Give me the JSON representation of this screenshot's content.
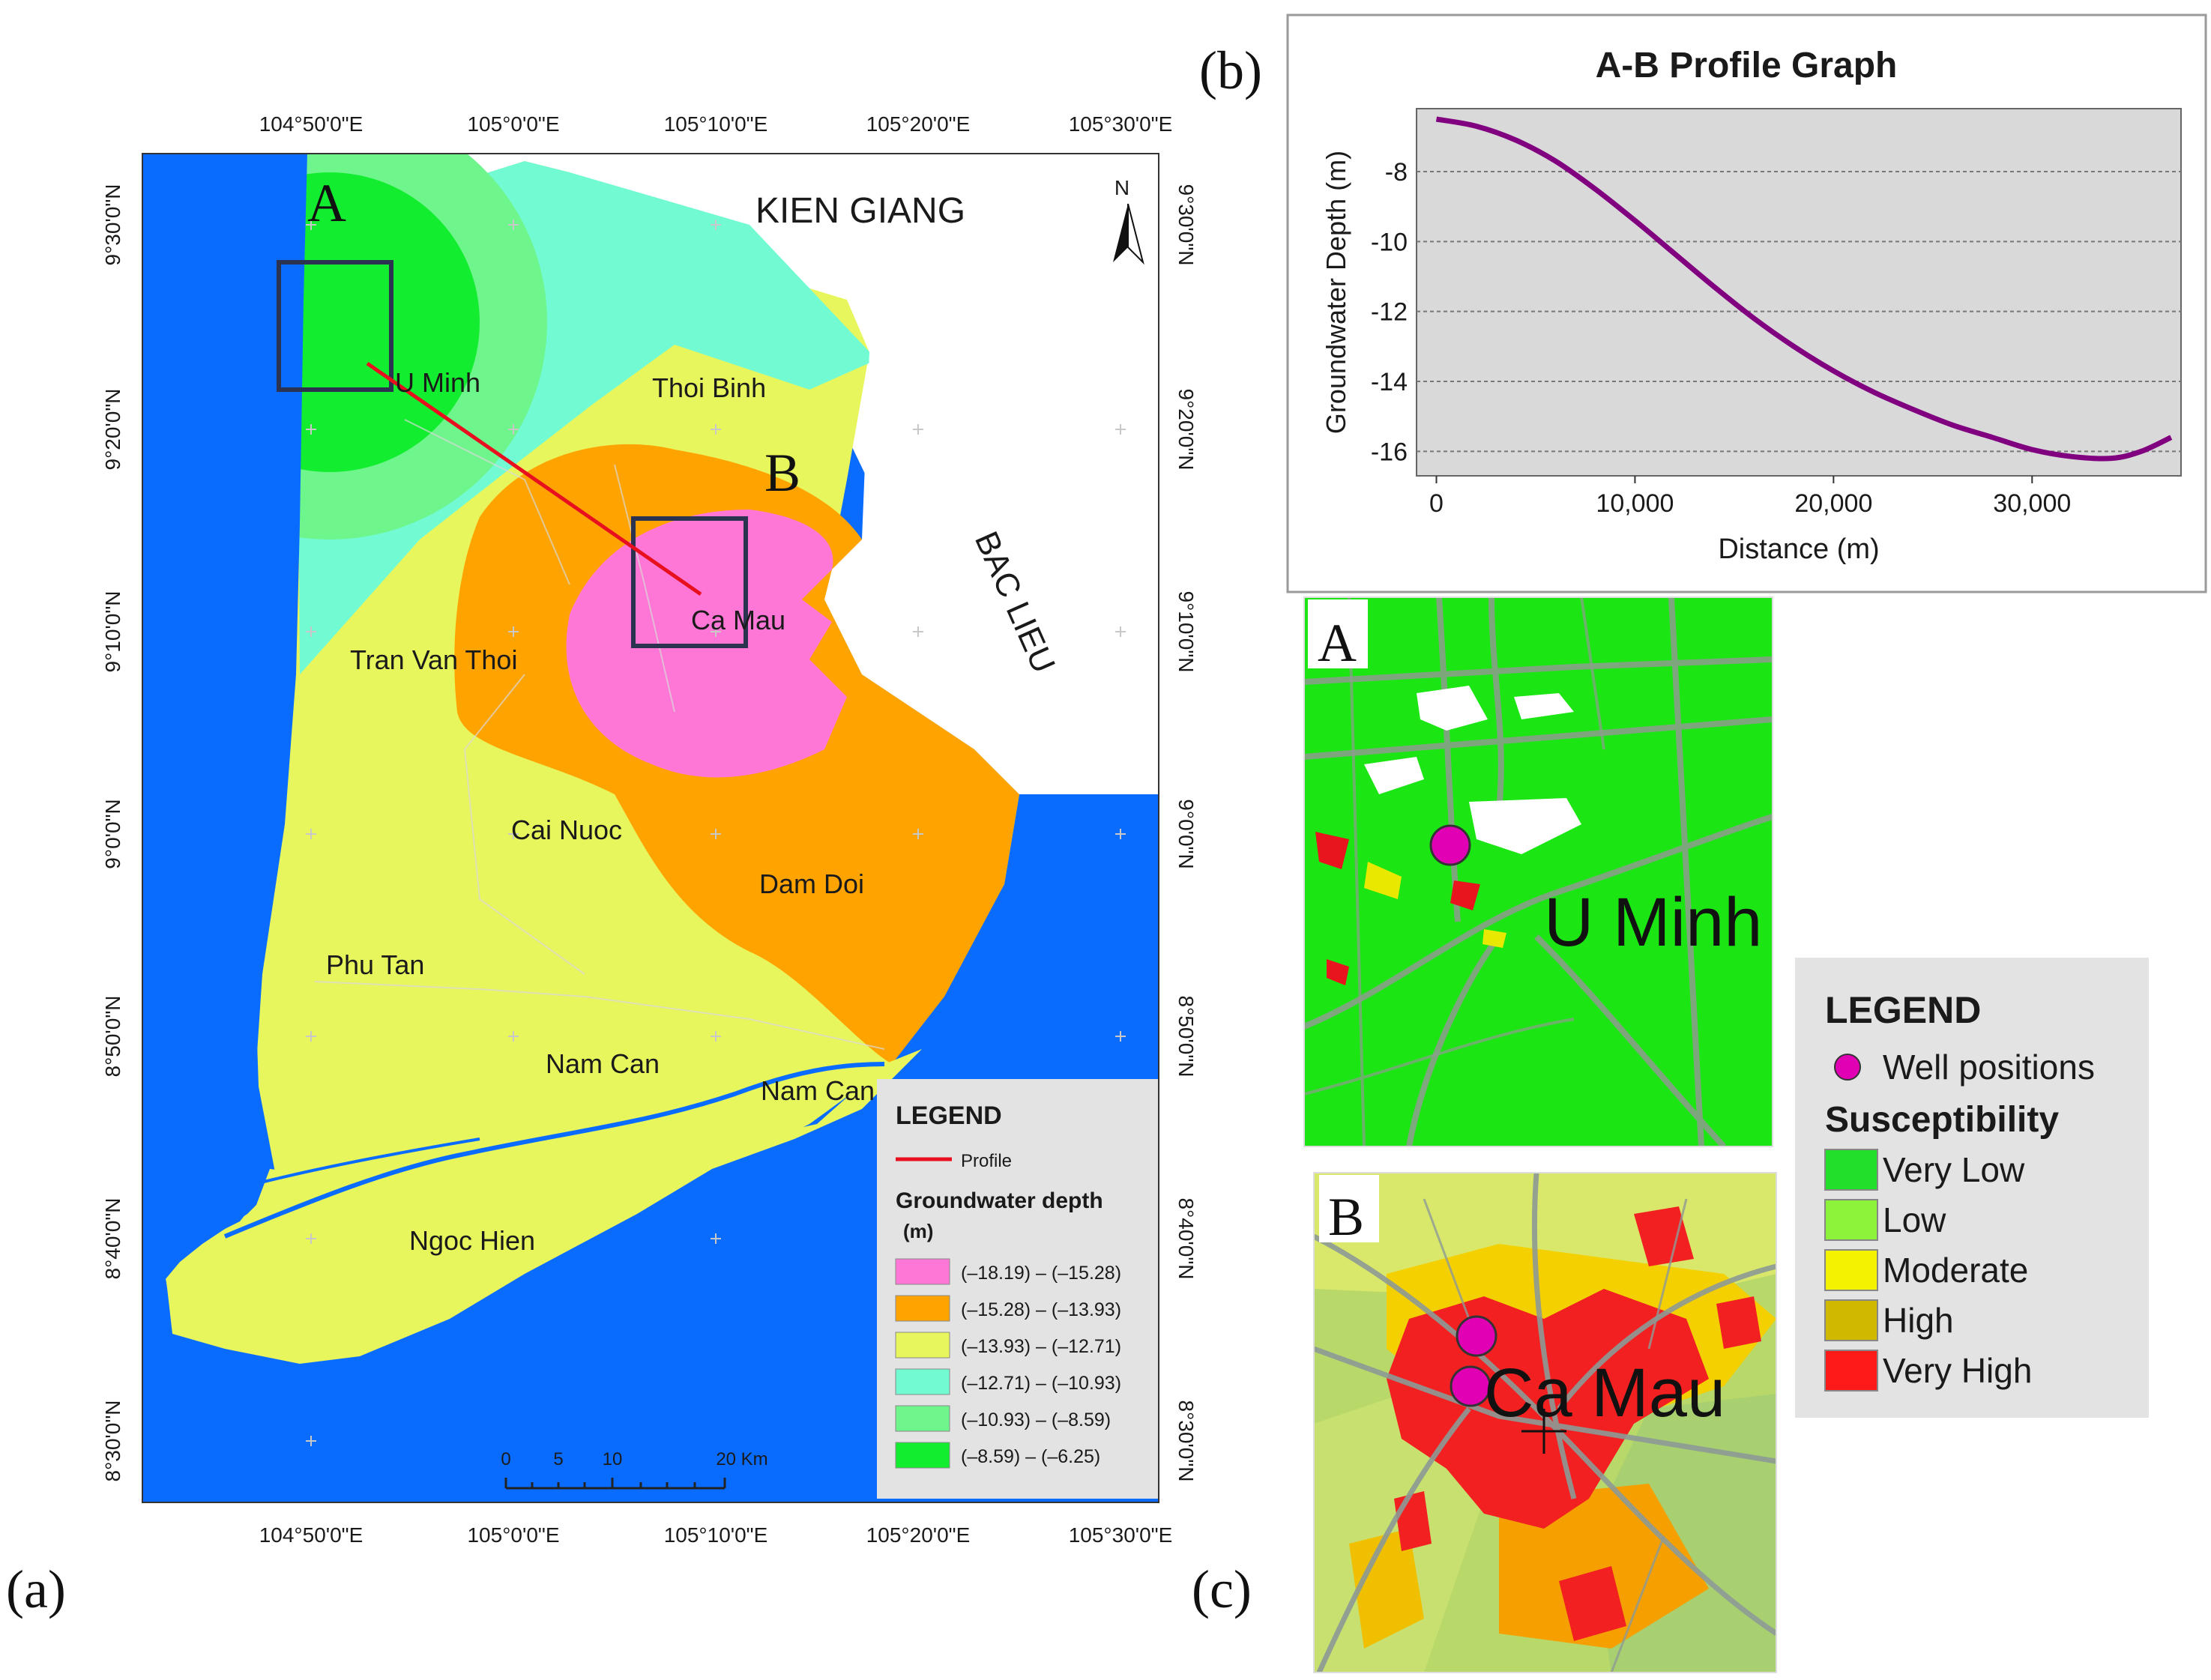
{
  "panels": {
    "a": "(a)",
    "b": "(b)",
    "c": "(c)"
  },
  "map": {
    "top_ticks": [
      "104°50'0\"E",
      "105°0'0\"E",
      "105°10'0\"E",
      "105°20'0\"E",
      "105°30'0\"E"
    ],
    "bottom_ticks": [
      "104°50'0\"E",
      "105°0'0\"E",
      "105°10'0\"E",
      "105°20'0\"E",
      "105°30'0\"E"
    ],
    "left_ticks": [
      "9°30'0\"N",
      "9°20'0\"N",
      "9°10'0\"N",
      "9°0'0\"N",
      "8°50'0\"N",
      "8°40'0\"N",
      "8°30'0\"N"
    ],
    "right_ticks": [
      "9°30'0\"N",
      "9°20'0\"N",
      "9°10'0\"N",
      "9°0'0\"N",
      "8°50'0\"N",
      "8°40'0\"N",
      "8°30'0\"N"
    ],
    "provinces": {
      "kien_giang": "KIEN GIANG",
      "bac_lieu": "BAC LIEU"
    },
    "districts": {
      "u_minh": "U Minh",
      "thoi_binh": "Thoi Binh",
      "ca_mau": "Ca Mau",
      "tran_van_thoi": "Tran Van Thoi",
      "cai_nuoc": "Cai Nuoc",
      "dam_doi": "Dam Doi",
      "phu_tan": "Phu Tan",
      "nam_can": "Nam Can",
      "nam_can_2": "Nam Can",
      "ngoc_hien": "Ngoc Hien"
    },
    "point_a": "A",
    "point_b": "B",
    "north": "N",
    "scale": {
      "labels": [
        "0",
        "5",
        "10",
        "20 Km"
      ]
    },
    "legend": {
      "title": "LEGEND",
      "profile_label": "Profile",
      "depth_title": "Groundwater depth",
      "depth_unit": "(m)",
      "classes": [
        {
          "label": "(–18.19) – (–15.28)",
          "color": "#ff77d6"
        },
        {
          "label": "(–15.28) – (–13.93)",
          "color": "#ffa300"
        },
        {
          "label": "(–13.93) – (–12.71)",
          "color": "#e8f65e"
        },
        {
          "label": "(–12.71) – (–10.93)",
          "color": "#72fbd2"
        },
        {
          "label": "(–10.93) – (–8.59)",
          "color": "#6ef58c"
        },
        {
          "label": "(–8.59) – (–6.25)",
          "color": "#12ee2f"
        }
      ]
    }
  },
  "chart_data": {
    "type": "line",
    "title": "A-B Profile Graph",
    "xlabel": "Distance (m)",
    "ylabel": "Groundwater Depth (m)",
    "x_ticks": [
      "0",
      "10,000",
      "20,000",
      "30,000"
    ],
    "y_ticks": [
      "-8",
      "-10",
      "-12",
      "-14",
      "-16"
    ],
    "xlim": [
      -1000,
      37500
    ],
    "ylim": [
      -16.7,
      -6.2
    ],
    "grid": true,
    "series": [
      {
        "name": "A-B profile",
        "color": "#800080",
        "x": [
          0,
          2000,
          4000,
          6000,
          8000,
          10000,
          12000,
          14000,
          16000,
          18000,
          20000,
          22000,
          24000,
          26000,
          28000,
          30000,
          32000,
          34000,
          35500,
          37000
        ],
        "y": [
          -6.5,
          -6.7,
          -7.1,
          -7.7,
          -8.5,
          -9.4,
          -10.35,
          -11.3,
          -12.2,
          -13.0,
          -13.7,
          -14.3,
          -14.8,
          -15.25,
          -15.6,
          -15.95,
          -16.15,
          -16.2,
          -16.0,
          -15.6
        ]
      }
    ]
  },
  "inset_a": {
    "label": "A",
    "place": "U Minh"
  },
  "inset_b": {
    "label": "B",
    "place": "Ca Mau"
  },
  "susceptibility_legend": {
    "title": "LEGEND",
    "wells_label": "Well positions",
    "subtitle": "Susceptibility",
    "classes": [
      {
        "label": "Very Low",
        "color": "#22e02a"
      },
      {
        "label": "Low",
        "color": "#8cf23a"
      },
      {
        "label": "Moderate",
        "color": "#f5f200"
      },
      {
        "label": "High",
        "color": "#d1b800"
      },
      {
        "label": "Very High",
        "color": "#ff1a1a"
      }
    ]
  }
}
